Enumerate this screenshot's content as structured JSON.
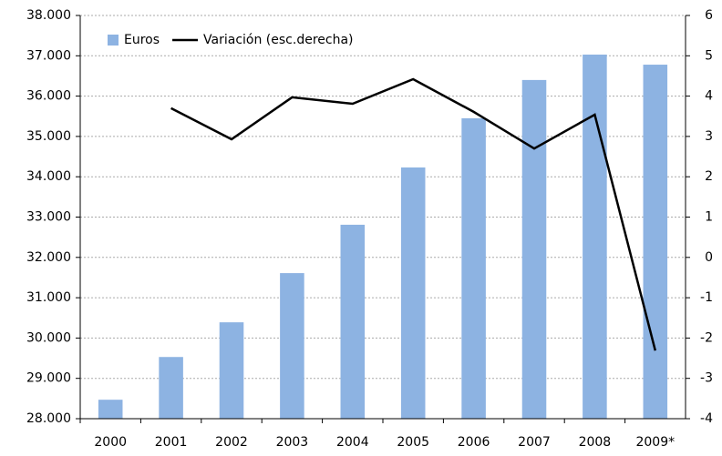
{
  "chart_data": {
    "type": "bar_line",
    "categories": [
      "2000",
      "2001",
      "2002",
      "2003",
      "2004",
      "2005",
      "2006",
      "2007",
      "2008",
      "2009*"
    ],
    "series": [
      {
        "name": "Euros",
        "color": "#8db3e2",
        "type": "bar",
        "values": [
          28470,
          29530,
          30390,
          31610,
          32810,
          34230,
          35450,
          36400,
          37030,
          36780
        ]
      },
      {
        "name": "Variación (esc.derecha)",
        "color": "#000000",
        "type": "line",
        "axis": "y2",
        "values": [
          null,
          3.7,
          2.93,
          3.97,
          3.81,
          4.42,
          3.61,
          2.7,
          3.54,
          -2.31
        ]
      }
    ],
    "ylim": [
      28000,
      38000
    ],
    "yticks": [
      {
        "value": 28000,
        "label": "28.000"
      },
      {
        "value": 29000,
        "label": "29.000"
      },
      {
        "value": 30000,
        "label": "30.000"
      },
      {
        "value": 31000,
        "label": "31.000"
      },
      {
        "value": 32000,
        "label": "32.000"
      },
      {
        "value": 33000,
        "label": "33.000"
      },
      {
        "value": 34000,
        "label": "34.000"
      },
      {
        "value": 35000,
        "label": "35.000"
      },
      {
        "value": 36000,
        "label": "36.000"
      },
      {
        "value": 37000,
        "label": "37.000"
      },
      {
        "value": 38000,
        "label": "38.000"
      }
    ],
    "y2lim": [
      -4,
      6
    ],
    "y2ticks": [
      -4,
      -3,
      -2,
      -1,
      0,
      1,
      2,
      3,
      4,
      5,
      6
    ],
    "grid": true,
    "legend": "top-left"
  }
}
